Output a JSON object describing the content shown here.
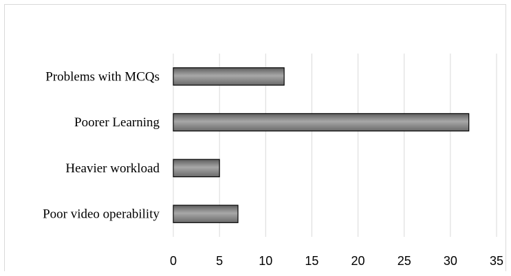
{
  "chart_data": {
    "type": "bar",
    "orientation": "horizontal",
    "categories": [
      "Problems with MCQs",
      "Poorer Learning",
      "Heavier workload",
      "Poor video operability"
    ],
    "values": [
      12,
      32,
      5,
      7
    ],
    "xlim": [
      0,
      35
    ],
    "xticks": [
      "0",
      "5",
      "10",
      "15",
      "20",
      "25",
      "30",
      "35"
    ],
    "grid": true,
    "bar_color": "#808080",
    "title": "",
    "xlabel": "",
    "ylabel": ""
  }
}
